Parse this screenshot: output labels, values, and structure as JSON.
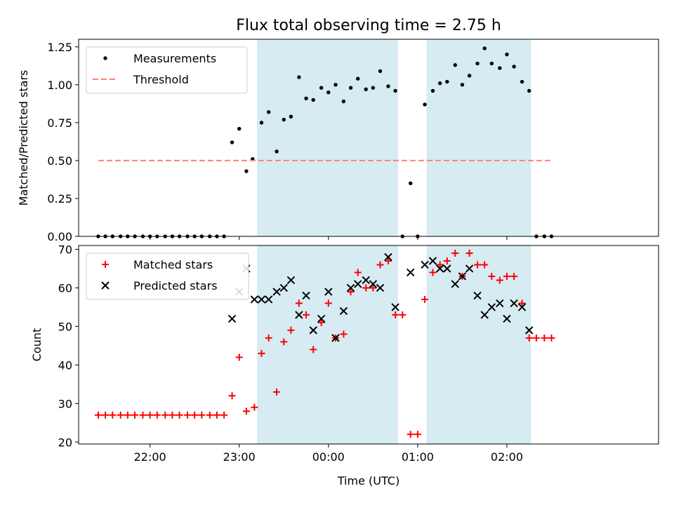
{
  "chart_data": [
    {
      "type": "scatter",
      "title": "Flux total observing time = 2.75 h",
      "xlabel": "",
      "ylabel": "Matched/Predicted stars",
      "xlim": [
        21.2,
        27.7
      ],
      "ylim": [
        0,
        1.3
      ],
      "yticks": [
        0,
        0.25,
        0.5,
        0.75,
        1.0,
        1.25
      ],
      "ytick_labels": [
        "0.00",
        "0.25",
        "0.50",
        "0.75",
        "1.00",
        "1.25"
      ],
      "grid": false,
      "legend": "top-left",
      "shaded_regions": [
        [
          23.2,
          24.78
        ],
        [
          25.1,
          26.27
        ]
      ],
      "shade_color": "#add8e6",
      "series": [
        {
          "name": "Measurements",
          "style": "dot",
          "color": "#000000",
          "x": [
            21.42,
            21.5,
            21.58,
            21.67,
            21.75,
            21.83,
            21.92,
            22.0,
            22.08,
            22.17,
            22.25,
            22.33,
            22.42,
            22.5,
            22.58,
            22.67,
            22.75,
            22.83,
            22.92,
            23.0,
            23.08,
            23.15,
            23.25,
            23.33,
            23.42,
            23.5,
            23.58,
            23.67,
            23.75,
            23.83,
            23.92,
            24.0,
            24.08,
            24.17,
            24.25,
            24.33,
            24.42,
            24.5,
            24.58,
            24.67,
            24.75,
            24.83,
            24.92,
            25.0,
            25.08,
            25.17,
            25.25,
            25.33,
            25.42,
            25.5,
            25.58,
            25.67,
            25.75,
            25.83,
            25.92,
            26.0,
            26.08,
            26.17,
            26.25,
            26.33,
            26.42,
            26.5
          ],
          "y": [
            0,
            0,
            0,
            0,
            0,
            0,
            0,
            0,
            0,
            0,
            0,
            0,
            0,
            0,
            0,
            0,
            0,
            0,
            0.62,
            0.71,
            0.43,
            0.51,
            0.75,
            0.82,
            0.56,
            0.77,
            0.79,
            1.05,
            0.91,
            0.9,
            0.98,
            0.95,
            1.0,
            0.89,
            0.98,
            1.04,
            0.97,
            0.98,
            1.09,
            0.99,
            0.96,
            0.0,
            0.35,
            0.0,
            0.87,
            0.96,
            1.01,
            1.02,
            1.13,
            1.0,
            1.06,
            1.14,
            1.24,
            1.14,
            1.11,
            1.2,
            1.12,
            1.02,
            0.96,
            0,
            0,
            0
          ]
        },
        {
          "name": "Threshold",
          "style": "dashed-line",
          "color": "#ff7f7f",
          "x": [
            21.42,
            26.5
          ],
          "y": [
            0.5,
            0.5
          ]
        }
      ]
    },
    {
      "type": "scatter",
      "title": "",
      "xlabel": "Time (UTC)",
      "ylabel": "Count",
      "xlim": [
        21.2,
        27.7
      ],
      "ylim": [
        19.5,
        71
      ],
      "xticks": [
        22,
        23,
        24,
        25,
        26
      ],
      "xtick_labels": [
        "22:00",
        "23:00",
        "00:00",
        "01:00",
        "02:00"
      ],
      "yticks": [
        20,
        30,
        40,
        50,
        60,
        70
      ],
      "ytick_labels": [
        "20",
        "30",
        "40",
        "50",
        "60",
        "70"
      ],
      "grid": false,
      "legend": "top-left",
      "shaded_regions": [
        [
          23.2,
          24.78
        ],
        [
          25.1,
          26.27
        ]
      ],
      "shade_color": "#add8e6",
      "series": [
        {
          "name": "Matched stars",
          "style": "plus",
          "color": "#ff0000",
          "x": [
            21.42,
            21.5,
            21.58,
            21.67,
            21.75,
            21.83,
            21.92,
            22.0,
            22.08,
            22.17,
            22.25,
            22.33,
            22.42,
            22.5,
            22.58,
            22.67,
            22.75,
            22.83,
            22.92,
            23.0,
            23.08,
            23.17,
            23.25,
            23.33,
            23.42,
            23.5,
            23.58,
            23.67,
            23.75,
            23.83,
            23.92,
            24.0,
            24.08,
            24.17,
            24.25,
            24.33,
            24.42,
            24.5,
            24.58,
            24.67,
            24.75,
            24.83,
            24.92,
            25.0,
            25.08,
            25.17,
            25.25,
            25.33,
            25.42,
            25.5,
            25.58,
            25.67,
            25.75,
            25.83,
            25.92,
            26.0,
            26.08,
            26.17,
            26.25,
            26.33,
            26.42,
            26.5
          ],
          "y": [
            27,
            27,
            27,
            27,
            27,
            27,
            27,
            27,
            27,
            27,
            27,
            27,
            27,
            27,
            27,
            27,
            27,
            27,
            32,
            42,
            28,
            29,
            43,
            47,
            33,
            46,
            49,
            56,
            53,
            44,
            51,
            56,
            47,
            48,
            59,
            64,
            60,
            60,
            66,
            67,
            53,
            53,
            22,
            22,
            57,
            64,
            66,
            67,
            69,
            63,
            69,
            66,
            66,
            63,
            62,
            63,
            63,
            56,
            47,
            47,
            47,
            47
          ]
        },
        {
          "name": "Predicted stars",
          "style": "x",
          "color": "#000000",
          "x": [
            22.92,
            23.0,
            23.08,
            23.17,
            23.25,
            23.33,
            23.42,
            23.5,
            23.58,
            23.67,
            23.75,
            23.83,
            23.92,
            24.0,
            24.08,
            24.17,
            24.25,
            24.33,
            24.42,
            24.5,
            24.58,
            24.67,
            24.75,
            24.92,
            25.08,
            25.17,
            25.25,
            25.33,
            25.42,
            25.5,
            25.58,
            25.67,
            25.75,
            25.83,
            25.92,
            26.0,
            26.08,
            26.17,
            26.25
          ],
          "y": [
            52,
            59,
            65,
            57,
            57,
            57,
            59,
            60,
            62,
            53,
            58,
            49,
            52,
            59,
            47,
            54,
            60,
            61,
            62,
            61,
            60,
            68,
            55,
            64,
            66,
            67,
            65,
            65,
            61,
            63,
            65,
            58,
            53,
            55,
            56,
            52,
            56,
            55,
            49
          ]
        }
      ]
    }
  ]
}
